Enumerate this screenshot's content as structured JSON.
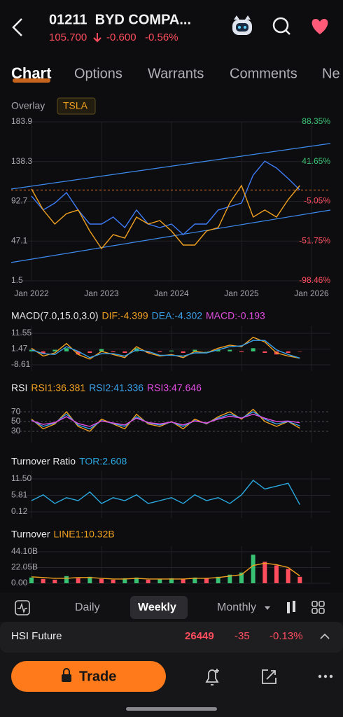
{
  "header": {
    "title": "01211  BYD COMPA...",
    "price": "105.700",
    "change": "-0.600",
    "change_pct": "-0.56%"
  },
  "tabs": [
    "Chart",
    "Options",
    "Warrants",
    "Comments",
    "Ne"
  ],
  "overlay": {
    "label": "Overlay"
  },
  "chart_data": [
    {
      "type": "line",
      "grid": true,
      "x": [
        "Jan 2022",
        "Mar 2022",
        "May 2022",
        "Jul 2022",
        "Sep 2022",
        "Nov 2022",
        "Jan 2023",
        "Mar 2023",
        "May 2023",
        "Jul 2023",
        "Sep 2023",
        "Nov 2023",
        "Jan 2024",
        "Mar 2024",
        "May 2024",
        "Jul 2024",
        "Sep 2024",
        "Nov 2024",
        "Jan 2025",
        "Mar 2025",
        "May 2025",
        "Jul 2025",
        "Sep 2025",
        "Nov 2025"
      ],
      "xticks": [
        "Jan 2022",
        "Jan 2023",
        "Jan 2024",
        "Jan 2025",
        "Jan 2026"
      ],
      "ylim": [
        1.5,
        183.9
      ],
      "yticks": [
        183.9,
        138.3,
        92.7,
        47.1,
        1.5
      ],
      "y2lim": [
        -98.46,
        88.35
      ],
      "y2ticks": [
        {
          "value": 88.35,
          "label": "88.35%"
        },
        {
          "value": 41.65,
          "label": "41.65%"
        },
        {
          "value": -5.05,
          "label": "-5.05%"
        },
        {
          "value": -51.75,
          "label": "-51.75%"
        },
        {
          "value": -98.46,
          "label": "-98.46%"
        }
      ],
      "reference_line": 105.7,
      "channels": [
        {
          "color": "#3d8bf0",
          "x": [
            "Jan 2022",
            "Jan 2026"
          ],
          "values": [
            110.1,
            156.0
          ]
        },
        {
          "color": "#3d8bf0",
          "x": [
            "Jan 2022",
            "Jan 2026"
          ],
          "values": [
            26.3,
            79.1
          ]
        }
      ],
      "series": [
        {
          "color": "#3d7bf5",
          "values": [
            98.7,
            82.7,
            90.7,
            102.7,
            82.7,
            66.6,
            66.6,
            74.6,
            62.6,
            82.7,
            66.6,
            62.6,
            66.6,
            54.5,
            66.6,
            66.6,
            82.7,
            86.7,
            90.7,
            122.8,
            138.8,
            130.9,
            118.8,
            105.7
          ]
        },
        {
          "name": "TSLA",
          "color": "#f0a020",
          "axis": "y2",
          "values": [
            9.4,
            -15.3,
            -31.8,
            -19.5,
            -15.3,
            -40.0,
            -60.6,
            -44.2,
            -48.3,
            -23.6,
            -31.8,
            -27.7,
            -40.0,
            -56.5,
            -56.5,
            -40.0,
            -35.9,
            -7.1,
            13.5,
            -23.6,
            -15.3,
            -23.6,
            -3.0,
            13.5
          ]
        }
      ]
    },
    {
      "type": "combo",
      "title": "MACD(7.0,15.0,3.0)",
      "ylim": [
        -12.64,
        16.48
      ],
      "yticks": [
        11.55,
        1.47,
        -8.61
      ],
      "series": [
        {
          "kind": "bar",
          "name": "MACD:-0.193",
          "color": "#e04de0",
          "color_by": "sign",
          "up_color": "#38c172",
          "down_color": "#ff4d5e",
          "values": [
            1,
            -1.5,
            1,
            2,
            -2,
            -1,
            1.5,
            -0.5,
            -1,
            2,
            -1,
            -0.5,
            0.5,
            -1,
            1,
            0,
            1,
            1,
            -0.5,
            2,
            -1,
            -2,
            -1,
            -0.193
          ]
        },
        {
          "name": "DIF:-4.399",
          "color": "#f0a020",
          "values": [
            2,
            -3,
            -1,
            5,
            -2,
            -5,
            0,
            -2,
            -4,
            3,
            -1,
            -3,
            -2,
            -4,
            0,
            -1,
            2,
            4,
            3,
            9,
            6,
            -1,
            -3,
            -4.399
          ]
        },
        {
          "name": "DEA:-4.302",
          "color": "#3aa0e8",
          "values": [
            1,
            -1.5,
            -2,
            3,
            0,
            -4,
            -1.5,
            -1.5,
            -3,
            1,
            0,
            -2.5,
            -2.5,
            -3,
            -1,
            -1,
            1,
            3,
            3.5,
            7,
            7,
            1,
            -2,
            -4.302
          ]
        }
      ],
      "legend_order": [
        1,
        2,
        0
      ]
    },
    {
      "type": "line",
      "title": "RSI",
      "ylim": [
        7,
        96
      ],
      "yticks": [
        70,
        50,
        30
      ],
      "grid": "dashed",
      "series": [
        {
          "name": "RSI1:36.381",
          "color": "#f0a020",
          "values": [
            55,
            35,
            45,
            70,
            40,
            30,
            55,
            45,
            35,
            65,
            45,
            40,
            50,
            35,
            55,
            45,
            60,
            70,
            55,
            75,
            50,
            40,
            50,
            36.381
          ]
        },
        {
          "name": "RSI2:41.336",
          "color": "#3aa0e8",
          "values": [
            53,
            40,
            47,
            65,
            43,
            35,
            52,
            46,
            40,
            60,
            47,
            43,
            49,
            40,
            52,
            46,
            57,
            65,
            57,
            70,
            55,
            45,
            50,
            41.336
          ]
        },
        {
          "name": "RSI3:47.646",
          "color": "#e04de0",
          "values": [
            52,
            44,
            48,
            60,
            46,
            40,
            51,
            47,
            43,
            57,
            48,
            45,
            49,
            43,
            51,
            47,
            55,
            61,
            57,
            65,
            57,
            50,
            51,
            47.646
          ]
        }
      ]
    },
    {
      "type": "line",
      "title": "Turnover Ratio",
      "ylim": [
        -2.06,
        14.4
      ],
      "yticks": [
        {
          "value": 11.5,
          "label": "11.50"
        },
        5.81,
        0.12
      ],
      "series": [
        {
          "name": "TOR:2.608",
          "color": "#2aa8e0",
          "values": [
            4,
            6,
            3,
            5,
            4,
            7,
            3,
            5,
            4,
            6,
            3,
            4,
            5,
            3,
            6,
            4,
            5,
            3,
            6,
            11,
            8,
            9,
            10,
            2.608
          ]
        }
      ]
    },
    {
      "type": "combo",
      "title": "Turnover",
      "ylim": [
        0,
        51.9
      ],
      "yticks": [
        {
          "value": 44.1,
          "label": "44.10B"
        },
        {
          "value": 22.05,
          "label": "22.05B"
        },
        {
          "value": 0,
          "label": "0.00"
        }
      ],
      "series": [
        {
          "kind": "bar",
          "color_by": "change",
          "up_color": "#38c172",
          "down_color": "#ff4d5e",
          "values": [
            8,
            6,
            5,
            10,
            7,
            9,
            6,
            5,
            7,
            8,
            5,
            6,
            7,
            6,
            8,
            7,
            9,
            12,
            15,
            40,
            30,
            25,
            20,
            9
          ]
        },
        {
          "name": "LINE1:10.32B",
          "color": "#f0a020",
          "values": [
            9,
            8,
            7,
            7,
            8,
            8,
            7,
            6,
            6,
            7,
            6,
            6,
            6,
            6,
            7,
            7,
            8,
            10,
            12,
            25,
            28,
            26,
            22,
            10.32
          ]
        }
      ]
    }
  ],
  "period_tabs": [
    "Daily",
    "Weekly",
    "Monthly"
  ],
  "ticker_bar": {
    "name": "HSI Future",
    "price": "26449",
    "change": "-35",
    "change_pct": "-0.13%"
  },
  "actions": {
    "trade": "Trade"
  }
}
